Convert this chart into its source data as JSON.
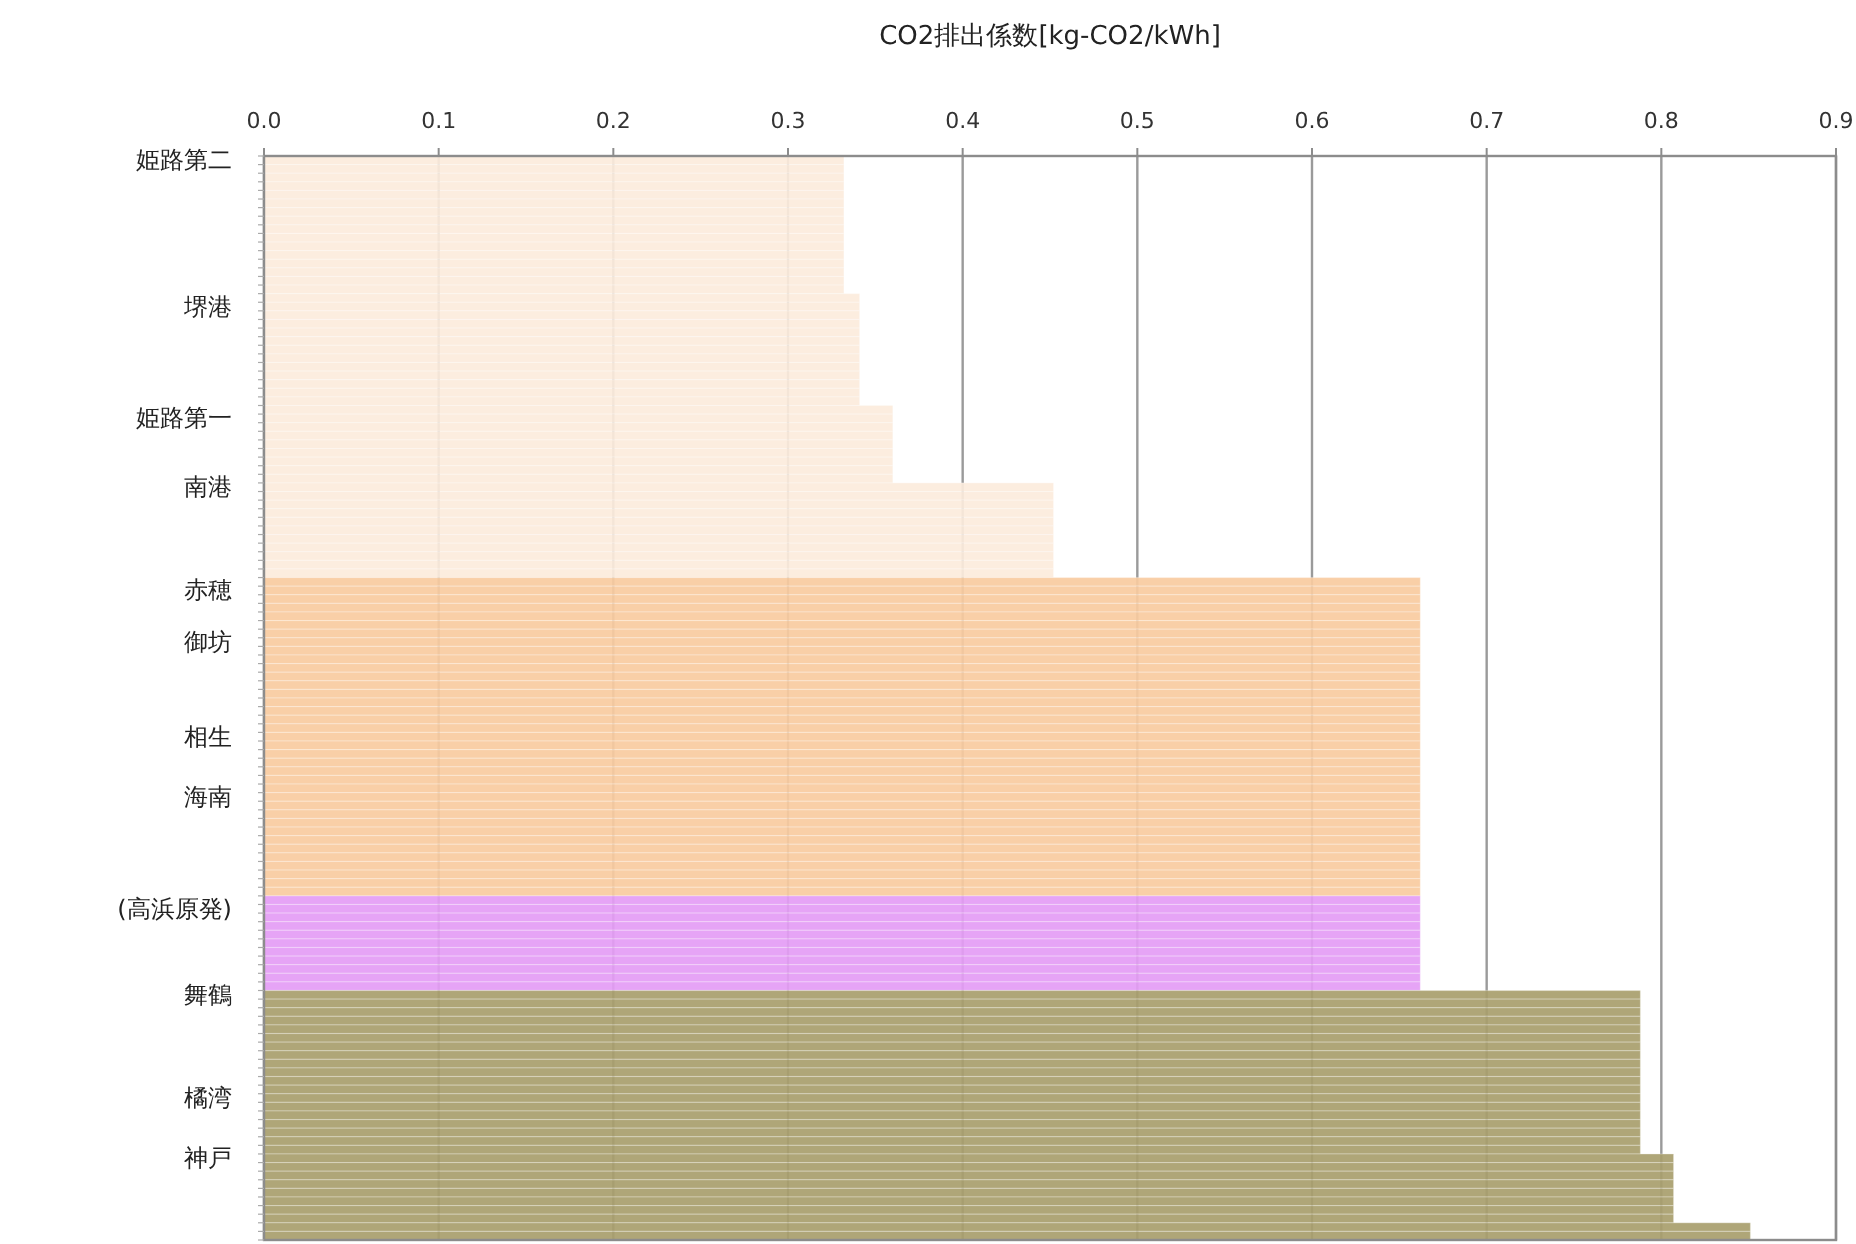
{
  "chart_data": {
    "type": "bar",
    "orientation": "horizontal",
    "xlabel": "CO2排出係数[kg-CO2/kWh]",
    "xlim": [
      0,
      0.9
    ],
    "xticks": [
      {
        "value": 0,
        "label": "0.0"
      },
      0.1,
      0.2,
      0.3,
      0.4,
      0.5,
      0.6,
      0.7,
      0.8,
      0.9
    ],
    "grid": "x",
    "categories": [
      "姫路第二",
      null,
      null,
      null,
      null,
      null,
      null,
      null,
      null,
      null,
      null,
      null,
      null,
      null,
      null,
      null,
      null,
      "堺港",
      null,
      null,
      null,
      null,
      null,
      null,
      null,
      null,
      null,
      null,
      null,
      null,
      "姫路第一",
      null,
      null,
      null,
      null,
      null,
      null,
      null,
      "南港",
      null,
      null,
      null,
      null,
      null,
      null,
      null,
      null,
      null,
      null,
      null,
      "赤穂",
      null,
      null,
      null,
      null,
      null,
      "御坊",
      null,
      null,
      null,
      null,
      null,
      null,
      null,
      null,
      null,
      null,
      "相生",
      null,
      null,
      null,
      null,
      null,
      null,
      "海南",
      null,
      null,
      null,
      null,
      null,
      null,
      null,
      null,
      null,
      null,
      null,
      null,
      "(高浜原発)",
      null,
      null,
      null,
      null,
      null,
      null,
      null,
      null,
      null,
      "舞鶴",
      null,
      null,
      null,
      null,
      null,
      null,
      null,
      null,
      null,
      null,
      null,
      "橘湾",
      null,
      null,
      null,
      null,
      null,
      null,
      "神戸",
      null,
      null,
      null,
      null,
      null,
      null,
      null,
      null,
      null
    ],
    "values": [
      0.332,
      0.332,
      0.332,
      0.332,
      0.332,
      0.332,
      0.332,
      0.332,
      0.332,
      0.332,
      0.332,
      0.332,
      0.332,
      0.332,
      0.332,
      0.332,
      0.341,
      0.341,
      0.341,
      0.341,
      0.341,
      0.341,
      0.341,
      0.341,
      0.341,
      0.341,
      0.341,
      0.341,
      0.341,
      0.36,
      0.36,
      0.36,
      0.36,
      0.36,
      0.36,
      0.36,
      0.36,
      0.36,
      0.452,
      0.452,
      0.452,
      0.452,
      0.452,
      0.452,
      0.452,
      0.452,
      0.452,
      0.452,
      0.452,
      0.662,
      0.662,
      0.662,
      0.662,
      0.662,
      0.662,
      0.662,
      0.662,
      0.662,
      0.662,
      0.662,
      0.662,
      0.662,
      0.662,
      0.662,
      0.662,
      0.662,
      0.662,
      0.662,
      0.662,
      0.662,
      0.662,
      0.662,
      0.662,
      0.662,
      0.662,
      0.662,
      0.662,
      0.662,
      0.662,
      0.662,
      0.662,
      0.662,
      0.662,
      0.662,
      0.662,
      0.662,
      0.662,
      0.662,
      0.662,
      0.662,
      0.662,
      0.662,
      0.662,
      0.662,
      0.662,
      0.662,
      0.662,
      0.788,
      0.788,
      0.788,
      0.788,
      0.788,
      0.788,
      0.788,
      0.788,
      0.788,
      0.788,
      0.788,
      0.788,
      0.788,
      0.788,
      0.788,
      0.788,
      0.788,
      0.788,
      0.788,
      0.807,
      0.807,
      0.807,
      0.807,
      0.807,
      0.807,
      0.807,
      0.807,
      0.851,
      0.851
    ],
    "colors": [
      "#fcebdc",
      "#fcebdc",
      "#fcebdc",
      "#fcebdc",
      "#fcebdc",
      "#fcebdc",
      "#fcebdc",
      "#fcebdc",
      "#fcebdc",
      "#fcebdc",
      "#fcebdc",
      "#fcebdc",
      "#fcebdc",
      "#fcebdc",
      "#fcebdc",
      "#fcebdc",
      "#fcebdc",
      "#fcebdc",
      "#fcebdc",
      "#fcebdc",
      "#fcebdc",
      "#fcebdc",
      "#fcebdc",
      "#fcebdc",
      "#fcebdc",
      "#fcebdc",
      "#fcebdc",
      "#fcebdc",
      "#fcebdc",
      "#fcebdc",
      "#fcebdc",
      "#fcebdc",
      "#fcebdc",
      "#fcebdc",
      "#fcebdc",
      "#fcebdc",
      "#fcebdc",
      "#fcebdc",
      "#fcebdc",
      "#fcebdc",
      "#fcebdc",
      "#fcebdc",
      "#fcebdc",
      "#fcebdc",
      "#fcebdc",
      "#fcebdc",
      "#fcebdc",
      "#fcebdc",
      "#fcebdc",
      "#f9cba0",
      "#f9cba0",
      "#f9cba0",
      "#f9cba0",
      "#f9cba0",
      "#f9cba0",
      "#f9cba0",
      "#f9cba0",
      "#f9cba0",
      "#f9cba0",
      "#f9cba0",
      "#f9cba0",
      "#f9cba0",
      "#f9cba0",
      "#f9cba0",
      "#f9cba0",
      "#f9cba0",
      "#f9cba0",
      "#f9cba0",
      "#f9cba0",
      "#f9cba0",
      "#f9cba0",
      "#f9cba0",
      "#f9cba0",
      "#f9cba0",
      "#f9cba0",
      "#f9cba0",
      "#f9cba0",
      "#f9cba0",
      "#f9cba0",
      "#f9cba0",
      "#f9cba0",
      "#f9cba0",
      "#f9cba0",
      "#f9cba0",
      "#f9cba0",
      "#f9cba0",
      "#e49cf5",
      "#e49cf5",
      "#e49cf5",
      "#e49cf5",
      "#e49cf5",
      "#e49cf5",
      "#e49cf5",
      "#e49cf5",
      "#e49cf5",
      "#e49cf5",
      "#e49cf5",
      "#a89e6c",
      "#a89e6c",
      "#a89e6c",
      "#a89e6c",
      "#a89e6c",
      "#a89e6c",
      "#a89e6c",
      "#a89e6c",
      "#a89e6c",
      "#a89e6c",
      "#a89e6c",
      "#a89e6c",
      "#a89e6c",
      "#a89e6c",
      "#a89e6c",
      "#a89e6c",
      "#a89e6c",
      "#a89e6c",
      "#a89e6c",
      "#a89e6c",
      "#a89e6c",
      "#a89e6c",
      "#a89e6c",
      "#a89e6c",
      "#a89e6c",
      "#a89e6c",
      "#a89e6c",
      "#a89e6c",
      "#a89e6c"
    ]
  }
}
